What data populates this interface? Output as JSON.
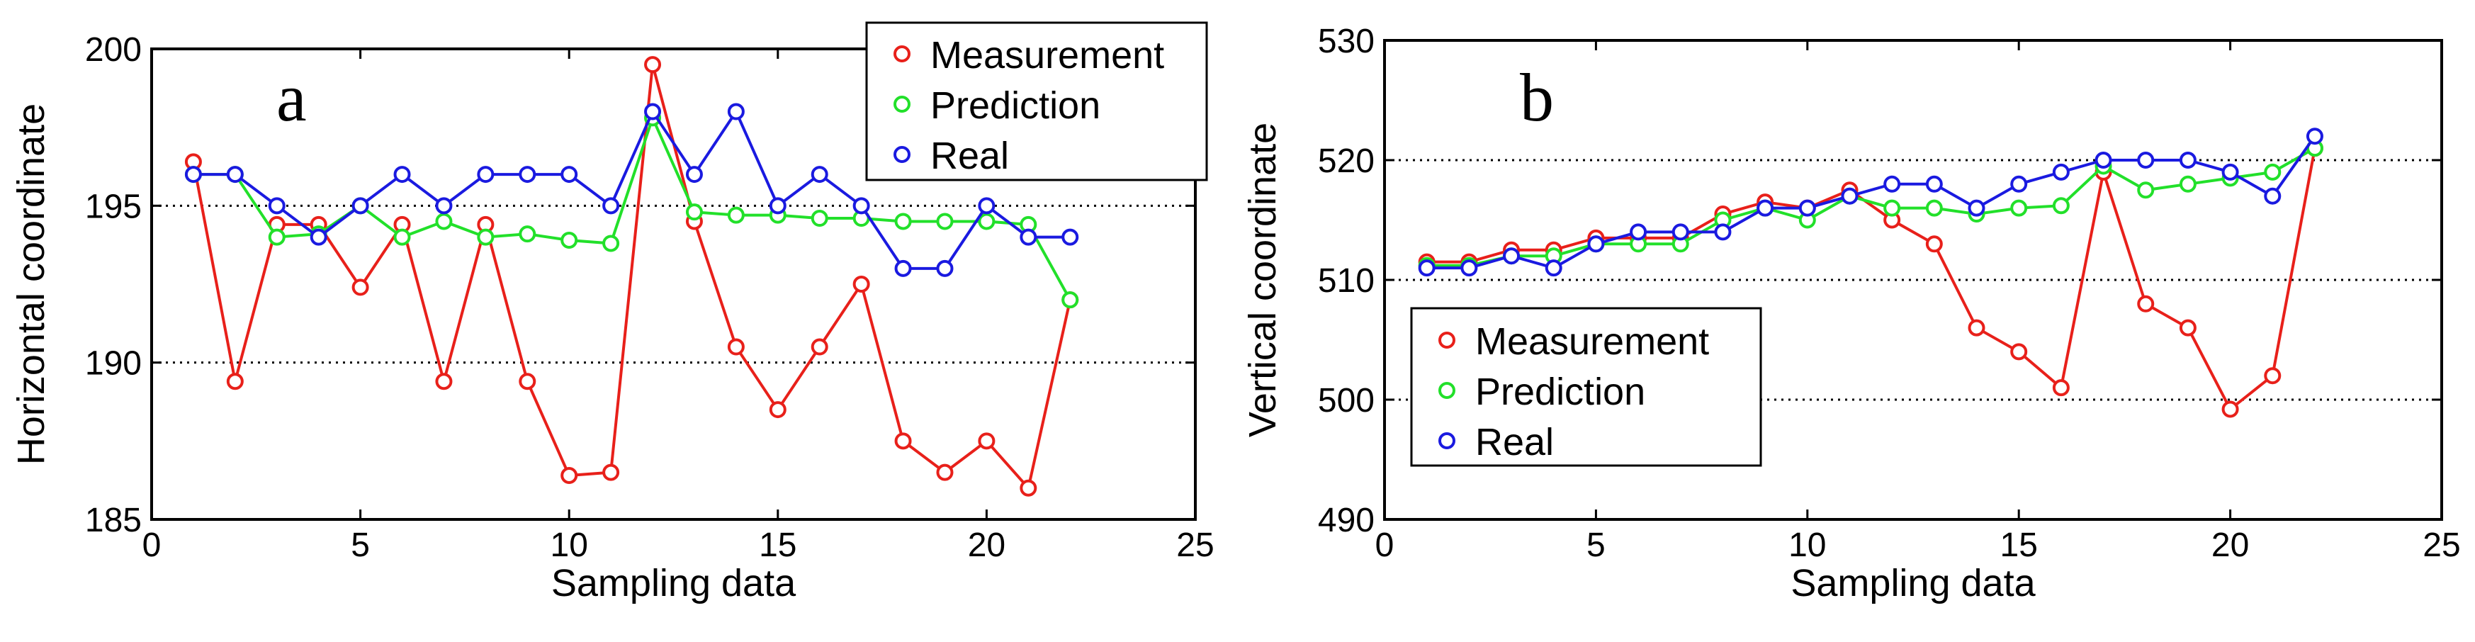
{
  "chart_data": [
    {
      "type": "line",
      "panel_label": "a",
      "xlabel": "Sampling data",
      "ylabel": "Horizontal coordinate",
      "xlim": [
        0,
        25
      ],
      "ylim": [
        185,
        200
      ],
      "xticks": [
        "0",
        "5",
        "10",
        "15",
        "20",
        "25"
      ],
      "yticks": [
        "185",
        "190",
        "195",
        "200"
      ],
      "grid_y": [
        190,
        195
      ],
      "legend_position": "top-right",
      "x": [
        1,
        2,
        3,
        4,
        5,
        6,
        7,
        8,
        9,
        10,
        11,
        12,
        13,
        14,
        15,
        16,
        17,
        18,
        19,
        20,
        21,
        22
      ],
      "series": [
        {
          "name": "Measurement",
          "color": "#e8201a",
          "values": [
            196.4,
            189.4,
            194.4,
            194.4,
            192.4,
            194.4,
            189.4,
            194.4,
            189.4,
            186.4,
            186.5,
            199.5,
            194.5,
            190.5,
            188.5,
            190.5,
            192.5,
            187.5,
            186.5,
            187.5,
            186.0,
            192.0
          ]
        },
        {
          "name": "Prediction",
          "color": "#22e02a",
          "values": [
            196.0,
            196.0,
            194.0,
            194.1,
            195.0,
            194.0,
            194.5,
            194.0,
            194.1,
            193.9,
            193.8,
            197.8,
            194.8,
            194.7,
            194.7,
            194.6,
            194.6,
            194.5,
            194.5,
            194.5,
            194.4,
            192.0
          ]
        },
        {
          "name": "Real",
          "color": "#1a1ae0",
          "values": [
            196,
            196,
            195,
            194,
            195,
            196,
            195,
            196,
            196,
            196,
            195,
            198,
            196,
            198,
            195,
            196,
            195,
            193,
            193,
            195,
            194,
            194
          ]
        }
      ]
    },
    {
      "type": "line",
      "panel_label": "b",
      "xlabel": "Sampling data",
      "ylabel": "Vertical coordinate",
      "xlim": [
        0,
        25
      ],
      "ylim": [
        490,
        530
      ],
      "xticks": [
        "0",
        "5",
        "10",
        "15",
        "20",
        "25"
      ],
      "yticks": [
        "490",
        "500",
        "510",
        "520",
        "530"
      ],
      "grid_y": [
        500,
        510,
        520
      ],
      "legend_position": "bottom-left",
      "x": [
        1,
        2,
        3,
        4,
        5,
        6,
        7,
        8,
        9,
        10,
        11,
        12,
        13,
        14,
        15,
        16,
        17,
        18,
        19,
        20,
        21,
        22
      ],
      "series": [
        {
          "name": "Measurement",
          "color": "#e8201a",
          "values": [
            511.5,
            511.5,
            512.5,
            512.5,
            513.5,
            513.5,
            513.5,
            515.5,
            516.5,
            516.0,
            517.5,
            515.0,
            513.0,
            506.0,
            504.0,
            501.0,
            519.0,
            508.0,
            506.0,
            499.2,
            502.0,
            521.0
          ]
        },
        {
          "name": "Prediction",
          "color": "#22e02a",
          "values": [
            511.2,
            511.2,
            512.0,
            512.0,
            513.0,
            513.0,
            513.0,
            515.0,
            516.0,
            515.0,
            517.0,
            516.0,
            516.0,
            515.5,
            516.0,
            516.2,
            519.5,
            517.5,
            518.0,
            518.5,
            519.0,
            521.0
          ]
        },
        {
          "name": "Real",
          "color": "#1a1ae0",
          "values": [
            511,
            511,
            512,
            511,
            513,
            514,
            514,
            514,
            516,
            516,
            517,
            518,
            518,
            516,
            518,
            519,
            520,
            520,
            520,
            519,
            517,
            522
          ]
        }
      ]
    }
  ]
}
